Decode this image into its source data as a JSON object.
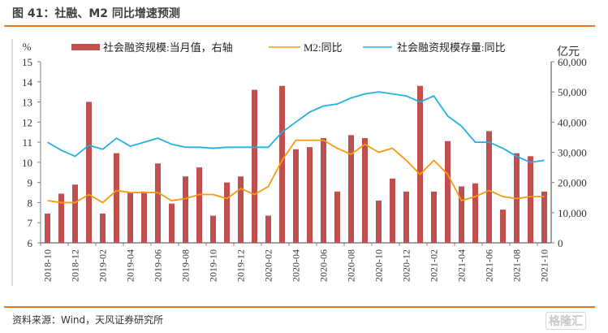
{
  "header": {
    "title": "图 41：社融、M2 同比增速预测"
  },
  "footer": {
    "source": "资料来源：Wind，天风证券研究所",
    "watermark": "格隆汇"
  },
  "colors": {
    "bar": "#c0504d",
    "m2": "#f79a0e",
    "stock": "#1eb0e6",
    "rule": "#e8761f",
    "axis": "#808080"
  },
  "chart_data": {
    "type": "bar+line",
    "title": "社融、M2 同比增速预测",
    "left_axis": {
      "label": "%",
      "range": [
        6,
        15
      ],
      "ticks": [
        6,
        7,
        8,
        9,
        10,
        11,
        12,
        13,
        14,
        15
      ]
    },
    "right_axis": {
      "label": "亿元",
      "range": [
        0,
        60000
      ],
      "ticks": [
        "0",
        "10,000",
        "20,000",
        "30,000",
        "40,000",
        "50,000",
        "60,000"
      ],
      "tick_values": [
        0,
        10000,
        20000,
        30000,
        40000,
        50000,
        60000
      ]
    },
    "x": [
      "2018-10",
      "2018-11",
      "2018-12",
      "2019-01",
      "2019-02",
      "2019-03",
      "2019-04",
      "2019-05",
      "2019-06",
      "2019-07",
      "2019-08",
      "2019-09",
      "2019-10",
      "2019-11",
      "2019-12",
      "2020-01",
      "2020-02",
      "2020-03",
      "2020-04",
      "2020-05",
      "2020-06",
      "2020-07",
      "2020-08",
      "2020-09",
      "2020-10",
      "2020-11",
      "2020-12",
      "2021-01",
      "2021-02",
      "2021-03",
      "2021-04",
      "2021-05",
      "2021-06",
      "2021-07",
      "2021-08",
      "2021-09",
      "2021-10"
    ],
    "x_tick_labels": [
      "2018-10",
      "2018-12",
      "2019-02",
      "2019-04",
      "2019-06",
      "2019-08",
      "2019-10",
      "2019-12",
      "2020-02",
      "2020-04",
      "2020-06",
      "2020-08",
      "2020-10",
      "2020-12",
      "2021-02",
      "2021-04",
      "2021-06",
      "2021-08",
      "2021-10"
    ],
    "legend": [
      "社会融资规模:当月值，右轴",
      "M2:同比",
      "社会融资规模存量:同比"
    ],
    "legend_position": "top",
    "series": [
      {
        "name": "社会融资规模:当月值，右轴",
        "type": "bar",
        "axis": "right",
        "values": [
          9700,
          16300,
          19300,
          46700,
          9700,
          29700,
          16700,
          17000,
          26300,
          13000,
          22000,
          25000,
          9000,
          20000,
          22000,
          50700,
          9000,
          52000,
          31000,
          31700,
          34700,
          17000,
          35700,
          34700,
          14000,
          21300,
          17000,
          52000,
          17000,
          33700,
          18700,
          19700,
          37000,
          11000,
          29700,
          28700,
          17000
        ]
      },
      {
        "name": "M2:同比",
        "type": "line",
        "axis": "left",
        "values": [
          8.1,
          8.0,
          8.0,
          8.4,
          8.0,
          8.6,
          8.5,
          8.5,
          8.5,
          8.1,
          8.2,
          8.4,
          8.4,
          8.2,
          8.7,
          8.4,
          8.8,
          10.1,
          11.1,
          11.1,
          11.1,
          10.7,
          10.4,
          10.9,
          10.5,
          10.7,
          10.1,
          9.4,
          10.1,
          9.4,
          8.1,
          8.3,
          8.6,
          8.3,
          8.2,
          8.3,
          8.3
        ]
      },
      {
        "name": "社会融资规模存量:同比",
        "type": "line",
        "axis": "left",
        "values": [
          11.0,
          10.6,
          10.3,
          10.85,
          10.65,
          11.2,
          10.8,
          11.0,
          11.2,
          10.9,
          10.75,
          10.75,
          10.7,
          10.75,
          10.75,
          10.75,
          10.75,
          11.5,
          12.0,
          12.5,
          12.8,
          12.9,
          13.2,
          13.4,
          13.5,
          13.4,
          13.3,
          13.0,
          13.3,
          12.3,
          11.8,
          11.0,
          11.0,
          10.7,
          10.3,
          10.0,
          10.1
        ]
      }
    ]
  }
}
